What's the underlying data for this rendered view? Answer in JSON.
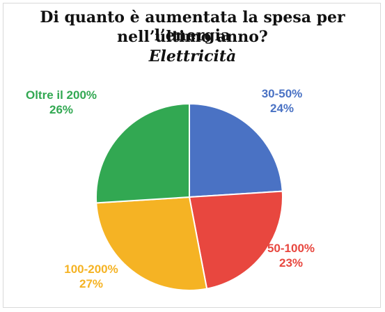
{
  "chart_data": {
    "type": "pie",
    "title": "Di quanto è aumentata la spesa per l’energia",
    "title_line2": "nell’ultimo anno?",
    "subtitle": "Elettricità",
    "slices": [
      {
        "label": "30-50%",
        "value": 24,
        "value_label": "24%",
        "color": "#4a72c4"
      },
      {
        "label": "50-100%",
        "value": 23,
        "value_label": "23%",
        "color": "#e8473f"
      },
      {
        "label": "100-200%",
        "value": 27,
        "value_label": "27%",
        "color": "#f5b324"
      },
      {
        "label": "Oltre il 200%",
        "value": 26,
        "value_label": "26%",
        "color": "#32a852"
      }
    ],
    "start_angle_deg": 0,
    "direction": "clockwise"
  }
}
